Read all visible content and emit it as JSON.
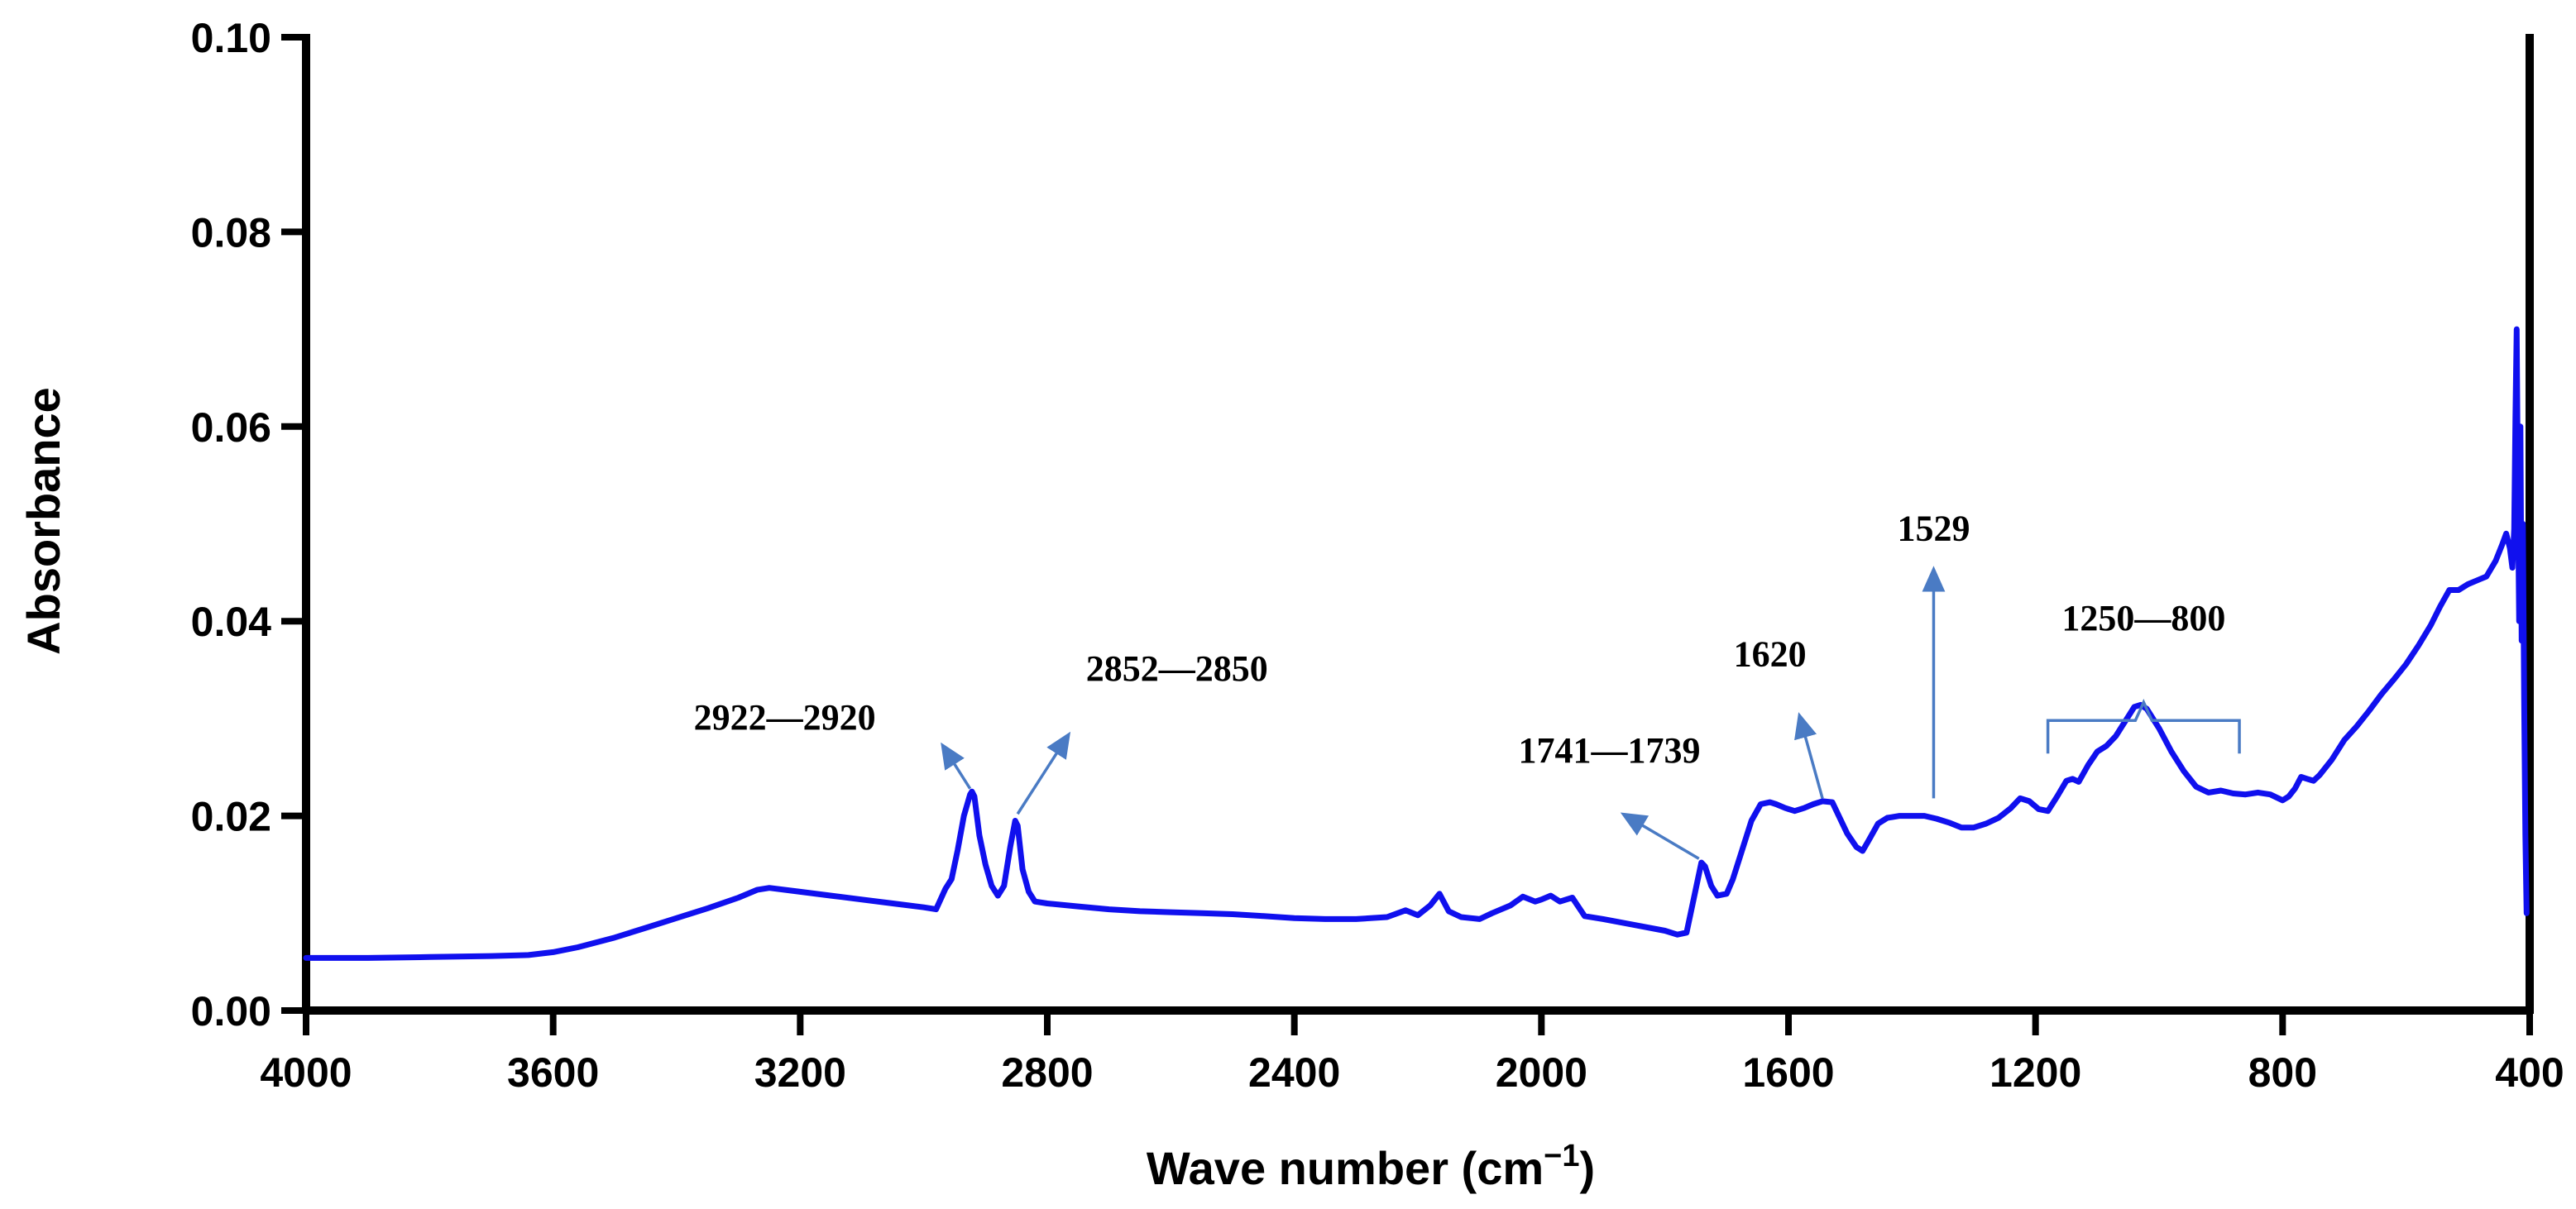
{
  "chart_data": {
    "type": "line",
    "title": "",
    "xlabel": "Wave number (cm",
    "xlabel_sup": "−1",
    "xlabel_close": ")",
    "ylabel": "Absorbance",
    "xlim": [
      4000,
      400
    ],
    "ylim": [
      0,
      0.1
    ],
    "xticks": [
      4000,
      3600,
      3200,
      2800,
      2400,
      2000,
      1600,
      1200,
      800,
      400
    ],
    "xtick_labels": [
      "4000",
      "3600",
      "3200",
      "2800",
      "2400",
      "2000",
      "1600",
      "1200",
      "800",
      "400"
    ],
    "yticks": [
      0,
      0.02,
      0.04,
      0.06,
      0.08,
      0.1
    ],
    "ytick_labels": [
      "0.00",
      "0.02",
      "0.04",
      "0.06",
      "0.08",
      "0.10"
    ],
    "grid": false,
    "legend": "none",
    "colors": {
      "series": "#1010ee",
      "annotation": "#4a7bc4",
      "axis": "#000000"
    },
    "series": [
      {
        "x": [
          4000,
          3900,
          3800,
          3700,
          3640,
          3600,
          3560,
          3500,
          3450,
          3400,
          3350,
          3300,
          3270,
          3250,
          3200,
          3150,
          3100,
          3050,
          3000,
          2980,
          2965,
          2955,
          2945,
          2935,
          2925,
          2922,
          2918,
          2910,
          2900,
          2890,
          2880,
          2870,
          2860,
          2852,
          2848,
          2840,
          2830,
          2820,
          2800,
          2750,
          2700,
          2650,
          2600,
          2550,
          2500,
          2450,
          2400,
          2350,
          2300,
          2250,
          2220,
          2200,
          2180,
          2165,
          2150,
          2130,
          2100,
          2080,
          2050,
          2030,
          2010,
          2000,
          1985,
          1970,
          1950,
          1930,
          1900,
          1850,
          1800,
          1780,
          1765,
          1750,
          1741,
          1735,
          1725,
          1715,
          1700,
          1690,
          1675,
          1660,
          1645,
          1630,
          1620,
          1605,
          1590,
          1575,
          1560,
          1545,
          1529,
          1520,
          1505,
          1490,
          1480,
          1470,
          1455,
          1440,
          1420,
          1400,
          1380,
          1360,
          1340,
          1320,
          1300,
          1280,
          1260,
          1240,
          1225,
          1210,
          1195,
          1180,
          1165,
          1150,
          1140,
          1130,
          1115,
          1100,
          1085,
          1070,
          1060,
          1050,
          1040,
          1030,
          1020,
          1000,
          980,
          960,
          940,
          920,
          900,
          880,
          860,
          840,
          820,
          800,
          790,
          780,
          770,
          760,
          750,
          740,
          720,
          700,
          680,
          660,
          640,
          620,
          600,
          580,
          560,
          545,
          530,
          515,
          500,
          485,
          470,
          455,
          445,
          438,
          432,
          428,
          425,
          423,
          421,
          419,
          417,
          415,
          413,
          411,
          409,
          407,
          405
        ],
        "y": [
          0.0054,
          0.0054,
          0.0055,
          0.0056,
          0.0057,
          0.006,
          0.0065,
          0.0075,
          0.0085,
          0.0095,
          0.0105,
          0.0116,
          0.0124,
          0.0126,
          0.0122,
          0.0118,
          0.0114,
          0.011,
          0.0106,
          0.0104,
          0.0125,
          0.0135,
          0.0165,
          0.02,
          0.0222,
          0.0225,
          0.022,
          0.018,
          0.015,
          0.0128,
          0.0118,
          0.0128,
          0.0168,
          0.0195,
          0.019,
          0.0145,
          0.0122,
          0.0112,
          0.011,
          0.0107,
          0.0104,
          0.0102,
          0.0101,
          0.01,
          0.0099,
          0.0097,
          0.0095,
          0.0094,
          0.0094,
          0.0096,
          0.0103,
          0.0098,
          0.0108,
          0.012,
          0.0102,
          0.0096,
          0.0094,
          0.01,
          0.0108,
          0.0117,
          0.0112,
          0.0114,
          0.0118,
          0.0112,
          0.0116,
          0.0097,
          0.0094,
          0.0088,
          0.0082,
          0.0078,
          0.008,
          0.0125,
          0.0152,
          0.0148,
          0.0128,
          0.0118,
          0.012,
          0.0135,
          0.0165,
          0.0195,
          0.0212,
          0.0214,
          0.0212,
          0.0208,
          0.0205,
          0.0208,
          0.0212,
          0.0215,
          0.0214,
          0.0202,
          0.0182,
          0.0168,
          0.0164,
          0.0175,
          0.0192,
          0.0198,
          0.02,
          0.02,
          0.02,
          0.0197,
          0.0193,
          0.0188,
          0.0188,
          0.0192,
          0.0198,
          0.0208,
          0.0218,
          0.0215,
          0.0207,
          0.0205,
          0.022,
          0.0236,
          0.0238,
          0.0235,
          0.0252,
          0.0266,
          0.0272,
          0.0282,
          0.0292,
          0.0302,
          0.0312,
          0.0314,
          0.031,
          0.029,
          0.0266,
          0.0246,
          0.023,
          0.0224,
          0.0226,
          0.0223,
          0.0222,
          0.0224,
          0.0222,
          0.0216,
          0.022,
          0.0228,
          0.024,
          0.0238,
          0.0236,
          0.0242,
          0.0258,
          0.0278,
          0.0292,
          0.0308,
          0.0325,
          0.034,
          0.0356,
          0.0375,
          0.0396,
          0.0415,
          0.0432,
          0.0432,
          0.0438,
          0.0442,
          0.0446,
          0.0462,
          0.0478,
          0.049,
          0.0475,
          0.0455,
          0.0495,
          0.061,
          0.07,
          0.053,
          0.04,
          0.06,
          0.038,
          0.05,
          0.032,
          0.018,
          0.01
        ]
      }
    ],
    "annotations": [
      {
        "label": "2922—2920",
        "target": [
          2925,
          0.0228
        ],
        "tip": [
          2965,
          0.0268
        ],
        "label_pos": [
          3225,
          0.0289
        ]
      },
      {
        "label": "2852—2850",
        "target": [
          2848,
          0.0202
        ],
        "tip": [
          2770,
          0.0279
        ],
        "label_pos": [
          2590,
          0.0339
        ]
      },
      {
        "label": "1741—1739",
        "target": [
          1745,
          0.0156
        ],
        "tip": [
          1860,
          0.0199
        ],
        "label_pos": [
          1890,
          0.0255
        ]
      },
      {
        "label": "1620",
        "target": [
          1545,
          0.0218
        ],
        "tip": [
          1580,
          0.0298
        ],
        "label_pos": [
          1630,
          0.0354
        ]
      },
      {
        "label": "1529",
        "target": [
          1365,
          0.0218
        ],
        "tip": [
          1365,
          0.0448
        ],
        "label_pos": [
          1365,
          0.0483
        ]
      }
    ],
    "range_annotation": {
      "label": "1250—800",
      "from": 1180,
      "to": 870,
      "y": 0.0298,
      "label_pos": [
        1025,
        0.0391
      ]
    }
  }
}
